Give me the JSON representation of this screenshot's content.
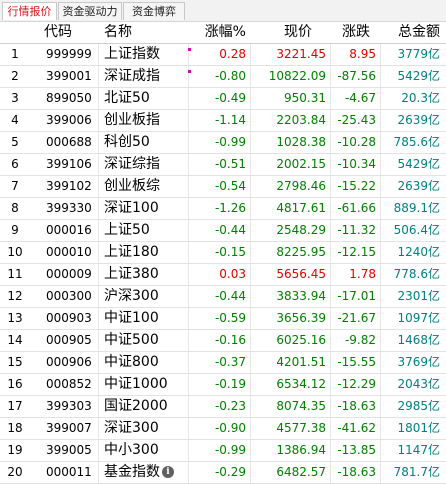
{
  "tabs": [
    {
      "label": "行情报价",
      "active": true
    },
    {
      "label": "资金驱动力",
      "active": false
    },
    {
      "label": "资金博弈",
      "active": false
    }
  ],
  "columns": {
    "code": "代码",
    "name": "名称",
    "pct": "涨幅%",
    "price": "现价",
    "change": "涨跌",
    "volume": "总金额"
  },
  "colors": {
    "up": "#e00000",
    "down": "#008000",
    "amount": "#008080"
  },
  "rows": [
    {
      "idx": "1",
      "code": "999999",
      "name": "上证指数",
      "pct": "0.28",
      "price": "3221.45",
      "change": "8.95",
      "volume": "3779亿",
      "dir": "up",
      "marker": true
    },
    {
      "idx": "2",
      "code": "399001",
      "name": "深证成指",
      "pct": "-0.80",
      "price": "10822.09",
      "change": "-87.56",
      "volume": "5429亿",
      "dir": "down",
      "marker": true
    },
    {
      "idx": "3",
      "code": "899050",
      "name": "北证50",
      "pct": "-0.49",
      "price": "950.31",
      "change": "-4.67",
      "volume": "20.3亿",
      "dir": "down"
    },
    {
      "idx": "4",
      "code": "399006",
      "name": "创业板指",
      "pct": "-1.14",
      "price": "2203.84",
      "change": "-25.43",
      "volume": "2639亿",
      "dir": "down"
    },
    {
      "idx": "5",
      "code": "000688",
      "name": "科创50",
      "pct": "-0.99",
      "price": "1028.38",
      "change": "-10.28",
      "volume": "785.6亿",
      "dir": "down"
    },
    {
      "idx": "6",
      "code": "399106",
      "name": "深证综指",
      "pct": "-0.51",
      "price": "2002.15",
      "change": "-10.34",
      "volume": "5429亿",
      "dir": "down"
    },
    {
      "idx": "7",
      "code": "399102",
      "name": "创业板综",
      "pct": "-0.54",
      "price": "2798.46",
      "change": "-15.22",
      "volume": "2639亿",
      "dir": "down"
    },
    {
      "idx": "8",
      "code": "399330",
      "name": "深证100",
      "pct": "-1.26",
      "price": "4817.61",
      "change": "-61.66",
      "volume": "889.1亿",
      "dir": "down"
    },
    {
      "idx": "9",
      "code": "000016",
      "name": "上证50",
      "pct": "-0.44",
      "price": "2548.29",
      "change": "-11.32",
      "volume": "506.4亿",
      "dir": "down"
    },
    {
      "idx": "10",
      "code": "000010",
      "name": "上证180",
      "pct": "-0.15",
      "price": "8225.95",
      "change": "-12.15",
      "volume": "1240亿",
      "dir": "down"
    },
    {
      "idx": "11",
      "code": "000009",
      "name": "上证380",
      "pct": "0.03",
      "price": "5656.45",
      "change": "1.78",
      "volume": "778.6亿",
      "dir": "up"
    },
    {
      "idx": "12",
      "code": "000300",
      "name": "沪深300",
      "pct": "-0.44",
      "price": "3833.94",
      "change": "-17.01",
      "volume": "2301亿",
      "dir": "down"
    },
    {
      "idx": "13",
      "code": "000903",
      "name": "中证100",
      "pct": "-0.59",
      "price": "3656.39",
      "change": "-21.67",
      "volume": "1097亿",
      "dir": "down"
    },
    {
      "idx": "14",
      "code": "000905",
      "name": "中证500",
      "pct": "-0.16",
      "price": "6025.16",
      "change": "-9.82",
      "volume": "1468亿",
      "dir": "down"
    },
    {
      "idx": "15",
      "code": "000906",
      "name": "中证800",
      "pct": "-0.37",
      "price": "4201.51",
      "change": "-15.55",
      "volume": "3769亿",
      "dir": "down"
    },
    {
      "idx": "16",
      "code": "000852",
      "name": "中证1000",
      "pct": "-0.19",
      "price": "6534.12",
      "change": "-12.29",
      "volume": "2043亿",
      "dir": "down"
    },
    {
      "idx": "17",
      "code": "399303",
      "name": "国证2000",
      "pct": "-0.23",
      "price": "8074.35",
      "change": "-18.63",
      "volume": "2985亿",
      "dir": "down"
    },
    {
      "idx": "18",
      "code": "399007",
      "code_note": "",
      "name": "深证300",
      "pct": "-0.90",
      "price": "4577.38",
      "change": "-41.62",
      "volume": "1801亿",
      "dir": "down"
    },
    {
      "idx": "19",
      "code": "399005",
      "name": "中小300",
      "pct": "-0.99",
      "price": "1386.94",
      "change": "-13.85",
      "volume": "1147亿",
      "dir": "down"
    },
    {
      "idx": "20",
      "code": "000011",
      "name": "基金指数",
      "pct": "-0.29",
      "price": "6482.57",
      "change": "-18.63",
      "volume": "781.7亿",
      "dir": "down",
      "info_icon": true
    }
  ]
}
